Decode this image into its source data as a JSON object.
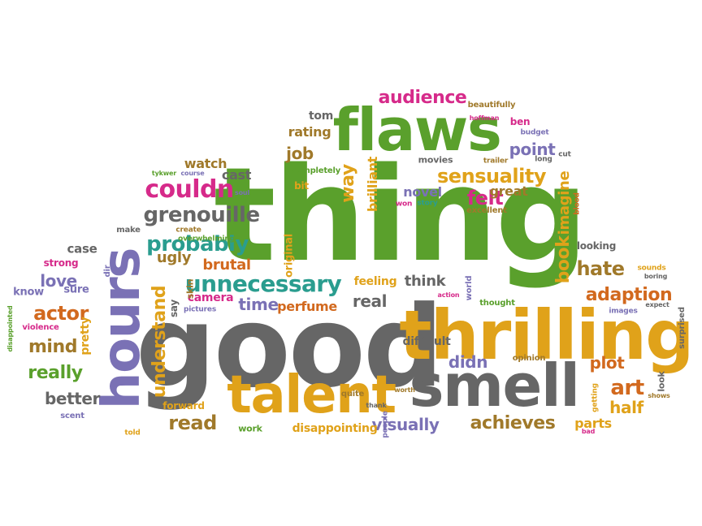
{
  "palette": {
    "green": "#5aa02c",
    "gray": "#666666",
    "orange": "#e0a21a",
    "purple": "#7a71b5",
    "magenta": "#d62a8a",
    "teal": "#2a9d8f",
    "brown": "#a0792a",
    "darkorange": "#d2691e"
  },
  "words": [
    {
      "text": "thing",
      "color": "green"
    },
    {
      "text": "good",
      "color": "gray"
    },
    {
      "text": "thrilling",
      "color": "orange"
    },
    {
      "text": "flaws",
      "color": "green"
    },
    {
      "text": "smell",
      "color": "gray"
    },
    {
      "text": "talent",
      "color": "orange"
    },
    {
      "text": "hours",
      "color": "purple"
    },
    {
      "text": "unnecessary",
      "color": "teal"
    },
    {
      "text": "couldn",
      "color": "magenta"
    },
    {
      "text": "grenouille",
      "color": "gray"
    },
    {
      "text": "probably",
      "color": "teal"
    },
    {
      "text": "sensuality",
      "color": "orange"
    },
    {
      "text": "audience",
      "color": "magenta"
    },
    {
      "text": "understand",
      "color": "orange"
    },
    {
      "text": "achieves",
      "color": "brown"
    },
    {
      "text": "adaption",
      "color": "darkorange"
    },
    {
      "text": "actor",
      "color": "darkorange"
    },
    {
      "text": "really",
      "color": "green"
    },
    {
      "text": "felt",
      "color": "magenta"
    },
    {
      "text": "book",
      "color": "orange"
    },
    {
      "text": "imagine",
      "color": "orange"
    },
    {
      "text": "hate",
      "color": "brown"
    },
    {
      "text": "mind",
      "color": "brown"
    },
    {
      "text": "read",
      "color": "brown"
    },
    {
      "text": "better",
      "color": "gray"
    },
    {
      "text": "love",
      "color": "purple"
    },
    {
      "text": "art",
      "color": "darkorange"
    },
    {
      "text": "half",
      "color": "orange"
    },
    {
      "text": "plot",
      "color": "darkorange"
    },
    {
      "text": "way",
      "color": "orange"
    },
    {
      "text": "point",
      "color": "purple"
    },
    {
      "text": "job",
      "color": "brown"
    },
    {
      "text": "brutal",
      "color": "darkorange"
    },
    {
      "text": "ugly",
      "color": "brown"
    },
    {
      "text": "visually",
      "color": "purple"
    },
    {
      "text": "real",
      "color": "gray"
    },
    {
      "text": "time",
      "color": "purple"
    },
    {
      "text": "think",
      "color": "gray"
    },
    {
      "text": "didn",
      "color": "purple"
    },
    {
      "text": "parts",
      "color": "orange"
    },
    {
      "text": "perfume",
      "color": "darkorange"
    },
    {
      "text": "cast",
      "color": "gray"
    },
    {
      "text": "watch",
      "color": "brown"
    },
    {
      "text": "rating",
      "color": "brown"
    },
    {
      "text": "tom",
      "color": "gray"
    },
    {
      "text": "novel",
      "color": "purple"
    },
    {
      "text": "great",
      "color": "brown"
    },
    {
      "text": "brilliant",
      "color": "orange"
    },
    {
      "text": "original",
      "color": "orange"
    },
    {
      "text": "difficult",
      "color": "gray"
    },
    {
      "text": "disappointing",
      "color": "orange"
    },
    {
      "text": "pretty",
      "color": "orange"
    },
    {
      "text": "camera",
      "color": "magenta"
    },
    {
      "text": "feeling",
      "color": "orange"
    },
    {
      "text": "case",
      "color": "gray"
    },
    {
      "text": "strong",
      "color": "magenta"
    },
    {
      "text": "sure",
      "color": "purple"
    },
    {
      "text": "know",
      "color": "purple"
    },
    {
      "text": "say",
      "color": "gray"
    },
    {
      "text": "bit",
      "color": "orange"
    },
    {
      "text": "looking",
      "color": "gray"
    },
    {
      "text": "forward",
      "color": "orange"
    },
    {
      "text": "work",
      "color": "green"
    },
    {
      "text": "quite",
      "color": "brown"
    },
    {
      "text": "opinion",
      "color": "brown"
    },
    {
      "text": "look",
      "color": "gray"
    },
    {
      "text": "scent",
      "color": "purple"
    },
    {
      "text": "violence",
      "color": "magenta"
    },
    {
      "text": "ben",
      "color": "magenta"
    },
    {
      "text": "movies",
      "color": "gray"
    },
    {
      "text": "completely",
      "color": "green"
    },
    {
      "text": "beautifully",
      "color": "brown"
    },
    {
      "text": "hoffman",
      "color": "magenta"
    },
    {
      "text": "budget",
      "color": "purple"
    },
    {
      "text": "trailer",
      "color": "brown"
    },
    {
      "text": "long",
      "color": "gray"
    },
    {
      "text": "cut",
      "color": "gray"
    },
    {
      "text": "story",
      "color": "teal"
    },
    {
      "text": "won",
      "color": "magenta"
    },
    {
      "text": "excellent",
      "color": "brown"
    },
    {
      "text": "blood",
      "color": "darkorange"
    },
    {
      "text": "sounds",
      "color": "orange"
    },
    {
      "text": "boring",
      "color": "gray"
    },
    {
      "text": "expect",
      "color": "gray"
    },
    {
      "text": "images",
      "color": "purple"
    },
    {
      "text": "surprised",
      "color": "gray"
    },
    {
      "text": "thought",
      "color": "green"
    },
    {
      "text": "world",
      "color": "purple"
    },
    {
      "text": "action",
      "color": "magenta"
    },
    {
      "text": "skin",
      "color": "brown"
    },
    {
      "text": "pictures",
      "color": "purple"
    },
    {
      "text": "create",
      "color": "brown"
    },
    {
      "text": "overwhelming",
      "color": "green"
    },
    {
      "text": "tykwer",
      "color": "green"
    },
    {
      "text": "course",
      "color": "purple"
    },
    {
      "text": "soul",
      "color": "purple"
    },
    {
      "text": "make",
      "color": "gray"
    },
    {
      "text": "dir",
      "color": "purple"
    },
    {
      "text": "disappointed",
      "color": "green"
    },
    {
      "text": "told",
      "color": "orange"
    },
    {
      "text": "people",
      "color": "purple"
    },
    {
      "text": "thank",
      "color": "gray"
    },
    {
      "text": "worth",
      "color": "brown"
    },
    {
      "text": "getting",
      "color": "orange"
    },
    {
      "text": "shows",
      "color": "brown"
    },
    {
      "text": "bad",
      "color": "magenta"
    }
  ]
}
